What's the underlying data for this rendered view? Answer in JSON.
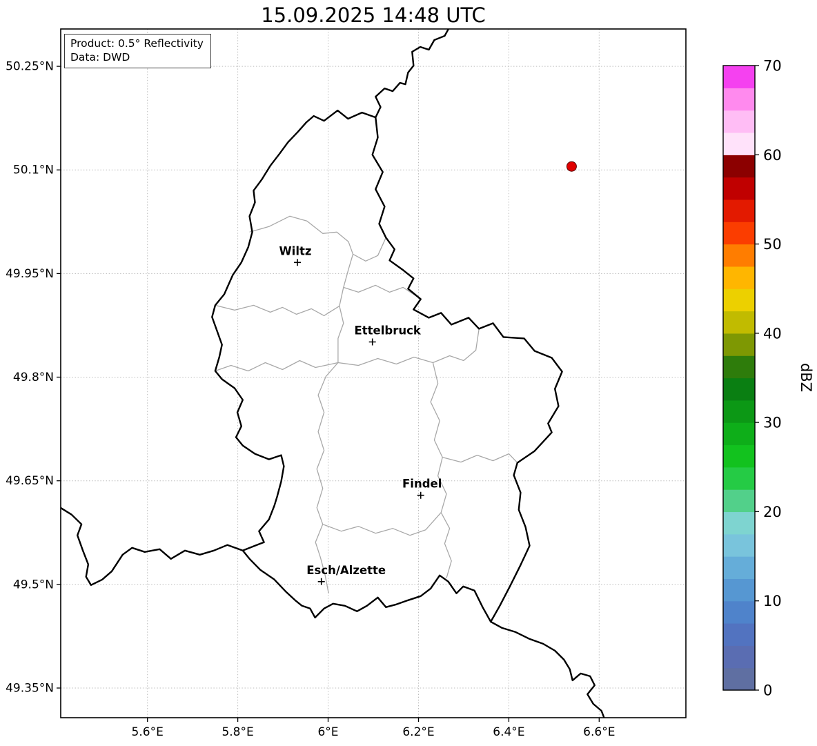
{
  "title": "15.09.2025 14:48 UTC",
  "info_box": {
    "product": "Product: 0.5° Reflectivity",
    "source": "Data: DWD"
  },
  "map": {
    "extent": {
      "lon_min": 5.408,
      "lon_max": 6.792,
      "lat_min": 49.307,
      "lat_max": 50.304
    },
    "x_ticks": [
      {
        "value": 5.6,
        "label": "5.6°E"
      },
      {
        "value": 5.8,
        "label": "5.8°E"
      },
      {
        "value": 6.0,
        "label": "6°E"
      },
      {
        "value": 6.2,
        "label": "6.2°E"
      },
      {
        "value": 6.4,
        "label": "6.4°E"
      },
      {
        "value": 6.6,
        "label": "6.6°E"
      }
    ],
    "y_ticks": [
      {
        "value": 50.25,
        "label": "50.25°N"
      },
      {
        "value": 50.1,
        "label": "50.1°N"
      },
      {
        "value": 49.95,
        "label": "49.95°N"
      },
      {
        "value": 49.8,
        "label": "49.8°N"
      },
      {
        "value": 49.65,
        "label": "49.65°N"
      },
      {
        "value": 49.5,
        "label": "49.5°N"
      },
      {
        "value": 49.35,
        "label": "49.35°N"
      }
    ],
    "cities": [
      {
        "name": "Wiltz",
        "lon": 5.932,
        "lat": 49.966,
        "label_dx": -3
      },
      {
        "name": "Ettelbruck",
        "lon": 6.098,
        "lat": 49.851,
        "label_dx": 22
      },
      {
        "name": "Findel",
        "lon": 6.205,
        "lat": 49.629,
        "label_dx": 2
      },
      {
        "name": "Esch/Alzette",
        "lon": 5.985,
        "lat": 49.504,
        "label_dx": 36
      }
    ],
    "radar_marker": {
      "lon": 6.539,
      "lat": 50.105,
      "fill": "#e00000"
    },
    "borders": {
      "country_outline": [
        [
          5.968,
          50.178
        ],
        [
          5.991,
          50.171
        ],
        [
          6.021,
          50.186
        ],
        [
          6.044,
          50.174
        ],
        [
          6.075,
          50.183
        ],
        [
          6.105,
          50.176
        ],
        [
          6.11,
          50.147
        ],
        [
          6.098,
          50.122
        ],
        [
          6.121,
          50.097
        ],
        [
          6.105,
          50.072
        ],
        [
          6.125,
          50.047
        ],
        [
          6.113,
          50.022
        ],
        [
          6.128,
          50.002
        ],
        [
          6.147,
          49.985
        ],
        [
          6.136,
          49.969
        ],
        [
          6.166,
          49.955
        ],
        [
          6.189,
          49.943
        ],
        [
          6.177,
          49.928
        ],
        [
          6.205,
          49.913
        ],
        [
          6.189,
          49.898
        ],
        [
          6.223,
          49.886
        ],
        [
          6.25,
          49.893
        ],
        [
          6.273,
          49.876
        ],
        [
          6.311,
          49.886
        ],
        [
          6.334,
          49.87
        ],
        [
          6.365,
          49.878
        ],
        [
          6.388,
          49.858
        ],
        [
          6.434,
          49.856
        ],
        [
          6.457,
          49.838
        ],
        [
          6.495,
          49.828
        ],
        [
          6.518,
          49.808
        ],
        [
          6.502,
          49.783
        ],
        [
          6.51,
          49.758
        ],
        [
          6.487,
          49.733
        ],
        [
          6.495,
          49.72
        ],
        [
          6.457,
          49.693
        ],
        [
          6.419,
          49.676
        ],
        [
          6.411,
          49.658
        ],
        [
          6.426,
          49.633
        ],
        [
          6.422,
          49.608
        ],
        [
          6.437,
          49.583
        ],
        [
          6.446,
          49.556
        ],
        [
          6.426,
          49.528
        ],
        [
          6.403,
          49.498
        ],
        [
          6.38,
          49.469
        ],
        [
          6.36,
          49.446
        ],
        [
          6.342,
          49.467
        ],
        [
          6.324,
          49.491
        ],
        [
          6.299,
          49.497
        ],
        [
          6.284,
          49.487
        ],
        [
          6.266,
          49.504
        ],
        [
          6.247,
          49.513
        ],
        [
          6.227,
          49.494
        ],
        [
          6.205,
          49.483
        ],
        [
          6.177,
          49.477
        ],
        [
          6.151,
          49.471
        ],
        [
          6.128,
          49.467
        ],
        [
          6.11,
          49.481
        ],
        [
          6.086,
          49.469
        ],
        [
          6.064,
          49.461
        ],
        [
          6.037,
          49.469
        ],
        [
          6.011,
          49.472
        ],
        [
          5.991,
          49.465
        ],
        [
          5.971,
          49.452
        ],
        [
          5.96,
          49.465
        ],
        [
          5.942,
          49.469
        ],
        [
          5.927,
          49.477
        ],
        [
          5.907,
          49.489
        ],
        [
          5.881,
          49.507
        ],
        [
          5.85,
          49.521
        ],
        [
          5.826,
          49.537
        ],
        [
          5.811,
          49.549
        ],
        [
          5.838,
          49.556
        ],
        [
          5.858,
          49.561
        ],
        [
          5.847,
          49.577
        ],
        [
          5.869,
          49.594
        ],
        [
          5.881,
          49.614
        ],
        [
          5.887,
          49.627
        ],
        [
          5.896,
          49.649
        ],
        [
          5.902,
          49.671
        ],
        [
          5.896,
          49.687
        ],
        [
          5.869,
          49.681
        ],
        [
          5.838,
          49.689
        ],
        [
          5.811,
          49.701
        ],
        [
          5.796,
          49.713
        ],
        [
          5.808,
          49.729
        ],
        [
          5.799,
          49.749
        ],
        [
          5.811,
          49.767
        ],
        [
          5.793,
          49.784
        ],
        [
          5.765,
          49.797
        ],
        [
          5.75,
          49.809
        ],
        [
          5.759,
          49.829
        ],
        [
          5.765,
          49.847
        ],
        [
          5.754,
          49.867
        ],
        [
          5.743,
          49.887
        ],
        [
          5.75,
          49.904
        ],
        [
          5.77,
          49.92
        ],
        [
          5.789,
          49.948
        ],
        [
          5.808,
          49.966
        ],
        [
          5.823,
          49.988
        ],
        [
          5.832,
          50.01
        ],
        [
          5.826,
          50.033
        ],
        [
          5.838,
          50.053
        ],
        [
          5.835,
          50.07
        ],
        [
          5.853,
          50.086
        ],
        [
          5.872,
          50.106
        ],
        [
          5.892,
          50.123
        ],
        [
          5.911,
          50.14
        ],
        [
          5.933,
          50.155
        ],
        [
          5.952,
          50.169
        ]
      ],
      "neighbor_lines": [
        [
          [
            6.105,
            50.176
          ],
          [
            6.116,
            50.191
          ],
          [
            6.105,
            50.206
          ],
          [
            6.125,
            50.218
          ],
          [
            6.143,
            50.214
          ],
          [
            6.159,
            50.226
          ],
          [
            6.171,
            50.224
          ],
          [
            6.177,
            50.241
          ],
          [
            6.189,
            50.251
          ],
          [
            6.186,
            50.271
          ],
          [
            6.204,
            50.278
          ],
          [
            6.223,
            50.274
          ],
          [
            6.235,
            50.288
          ],
          [
            6.258,
            50.294
          ],
          [
            6.268,
            50.306
          ]
        ],
        [
          [
            5.811,
            49.549
          ],
          [
            5.777,
            49.557
          ],
          [
            5.747,
            49.549
          ],
          [
            5.716,
            49.543
          ],
          [
            5.683,
            49.549
          ],
          [
            5.652,
            49.537
          ],
          [
            5.627,
            49.551
          ],
          [
            5.594,
            49.547
          ],
          [
            5.566,
            49.553
          ],
          [
            5.545,
            49.543
          ],
          [
            5.521,
            49.519
          ],
          [
            5.5,
            49.507
          ],
          [
            5.475,
            49.499
          ],
          [
            5.464,
            49.511
          ],
          [
            5.469,
            49.529
          ],
          [
            5.457,
            49.549
          ],
          [
            5.445,
            49.571
          ],
          [
            5.454,
            49.587
          ],
          [
            5.432,
            49.601
          ],
          [
            5.405,
            49.612
          ]
        ],
        [
          [
            6.36,
            49.446
          ],
          [
            6.385,
            49.437
          ],
          [
            6.415,
            49.431
          ],
          [
            6.446,
            49.421
          ],
          [
            6.476,
            49.414
          ],
          [
            6.502,
            49.404
          ],
          [
            6.522,
            49.391
          ],
          [
            6.535,
            49.377
          ],
          [
            6.541,
            49.361
          ],
          [
            6.559,
            49.371
          ],
          [
            6.58,
            49.367
          ],
          [
            6.59,
            49.354
          ],
          [
            6.574,
            49.341
          ],
          [
            6.587,
            49.327
          ],
          [
            6.605,
            49.317
          ],
          [
            6.612,
            49.305
          ]
        ]
      ],
      "district_lines": [
        [
          [
            5.826,
            50.01
          ],
          [
            5.869,
            50.018
          ],
          [
            5.915,
            50.033
          ],
          [
            5.953,
            50.026
          ],
          [
            5.988,
            50.008
          ],
          [
            6.019,
            50.01
          ],
          [
            6.045,
            49.996
          ],
          [
            6.055,
            49.978
          ],
          [
            6.045,
            49.956
          ],
          [
            6.034,
            49.93
          ],
          [
            6.025,
            49.903
          ],
          [
            6.034,
            49.878
          ],
          [
            6.022,
            49.856
          ],
          [
            6.022,
            49.821
          ]
        ],
        [
          [
            6.055,
            49.978
          ],
          [
            6.083,
            49.968
          ],
          [
            6.11,
            49.976
          ],
          [
            6.128,
            50.002
          ]
        ],
        [
          [
            5.75,
            49.809
          ],
          [
            5.785,
            49.817
          ],
          [
            5.823,
            49.809
          ],
          [
            5.861,
            49.821
          ],
          [
            5.899,
            49.811
          ],
          [
            5.937,
            49.824
          ],
          [
            5.972,
            49.814
          ],
          [
            6.022,
            49.821
          ],
          [
            6.067,
            49.817
          ],
          [
            6.11,
            49.827
          ],
          [
            6.151,
            49.819
          ],
          [
            6.19,
            49.829
          ],
          [
            6.232,
            49.821
          ],
          [
            6.269,
            49.831
          ],
          [
            6.3,
            49.824
          ],
          [
            6.327,
            49.839
          ],
          [
            6.334,
            49.87
          ]
        ],
        [
          [
            6.022,
            49.821
          ],
          [
            5.995,
            49.801
          ],
          [
            5.978,
            49.774
          ],
          [
            5.991,
            49.749
          ],
          [
            5.978,
            49.721
          ],
          [
            5.991,
            49.694
          ],
          [
            5.975,
            49.667
          ],
          [
            5.988,
            49.639
          ],
          [
            5.975,
            49.611
          ],
          [
            5.988,
            49.587
          ],
          [
            5.972,
            49.561
          ],
          [
            5.983,
            49.539
          ],
          [
            5.993,
            49.514
          ],
          [
            6.001,
            49.487
          ]
        ],
        [
          [
            6.232,
            49.821
          ],
          [
            6.243,
            49.791
          ],
          [
            6.227,
            49.764
          ],
          [
            6.247,
            49.737
          ],
          [
            6.235,
            49.709
          ],
          [
            6.253,
            49.684
          ],
          [
            6.243,
            49.657
          ],
          [
            6.262,
            49.631
          ],
          [
            6.25,
            49.604
          ],
          [
            6.269,
            49.581
          ],
          [
            6.258,
            49.559
          ],
          [
            6.273,
            49.534
          ],
          [
            6.262,
            49.509
          ]
        ],
        [
          [
            6.253,
            49.684
          ],
          [
            6.294,
            49.677
          ],
          [
            6.33,
            49.687
          ],
          [
            6.365,
            49.679
          ],
          [
            6.4,
            49.689
          ],
          [
            6.419,
            49.676
          ]
        ],
        [
          [
            5.75,
            49.904
          ],
          [
            5.793,
            49.897
          ],
          [
            5.835,
            49.904
          ],
          [
            5.872,
            49.894
          ],
          [
            5.899,
            49.901
          ],
          [
            5.93,
            49.891
          ],
          [
            5.963,
            49.899
          ],
          [
            5.991,
            49.889
          ],
          [
            6.025,
            49.903
          ]
        ],
        [
          [
            5.988,
            49.587
          ],
          [
            6.029,
            49.577
          ],
          [
            6.067,
            49.584
          ],
          [
            6.105,
            49.574
          ],
          [
            6.143,
            49.581
          ],
          [
            6.181,
            49.571
          ],
          [
            6.216,
            49.579
          ],
          [
            6.25,
            49.604
          ]
        ],
        [
          [
            6.034,
            49.93
          ],
          [
            6.067,
            49.923
          ],
          [
            6.105,
            49.933
          ],
          [
            6.136,
            49.923
          ],
          [
            6.166,
            49.93
          ],
          [
            6.189,
            49.92
          ],
          [
            6.205,
            49.913
          ]
        ]
      ]
    }
  },
  "colorbar": {
    "label": "dBZ",
    "min": 0,
    "max": 70,
    "tick_values": [
      0,
      10,
      20,
      30,
      40,
      50,
      60,
      70
    ],
    "segment_colors_bottom_to_top": [
      "#5f6fa2",
      "#5a6db2",
      "#5273c0",
      "#4f83cb",
      "#5697d2",
      "#65add9",
      "#79c4dc",
      "#7ed4d0",
      "#52d08a",
      "#25cb45",
      "#12c21e",
      "#0eae19",
      "#0c9815",
      "#0a7f12",
      "#2e7c0b",
      "#7e9803",
      "#c1bb00",
      "#ecd000",
      "#ffb600",
      "#ff7d00",
      "#fb3d00",
      "#e31a00",
      "#c00000",
      "#8c0000",
      "#ffe2fa",
      "#ffbdf5",
      "#ff8aee",
      "#f541f0"
    ]
  }
}
